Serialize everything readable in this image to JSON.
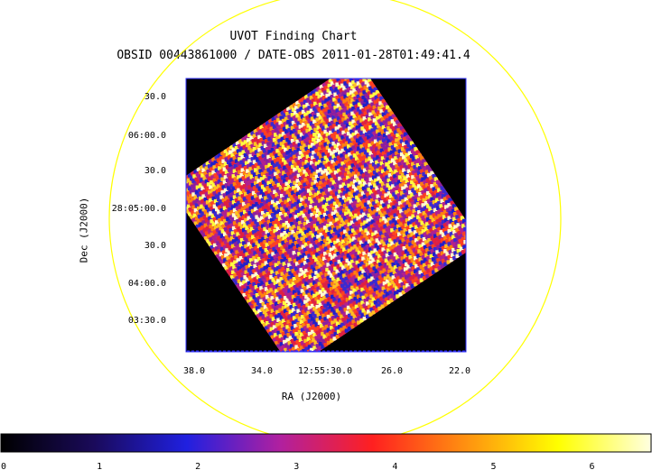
{
  "chart_data": {
    "type": "heatmap",
    "title": "UVOT Finding Chart",
    "subtitle": "OBSID 00443861000 / DATE-OBS 2011-01-28T01:49:41.4",
    "xlabel": "RA (J2000)",
    "ylabel": "Dec (J2000)",
    "x_ticks": [
      "38.0",
      "34.0",
      "12:55:30.0",
      "26.0",
      "22.0"
    ],
    "y_ticks": [
      "30.0",
      "06:00.0",
      "30.0",
      "28:05:00.0",
      "30.0",
      "04:00.0",
      "03:30.0"
    ],
    "colorbar": {
      "ticks": [
        "0",
        "1",
        "2",
        "3",
        "4",
        "5",
        "6"
      ],
      "range": [
        0,
        6.6
      ],
      "colormap": [
        "#000000",
        "#1a0a5a",
        "#2020e0",
        "#b020a0",
        "#ff2020",
        "#ff9010",
        "#ffff00",
        "#ffffe0"
      ]
    },
    "grid": false
  },
  "overlay": {
    "circle_color": "#ffff00"
  },
  "frame_color": "#3030ff"
}
